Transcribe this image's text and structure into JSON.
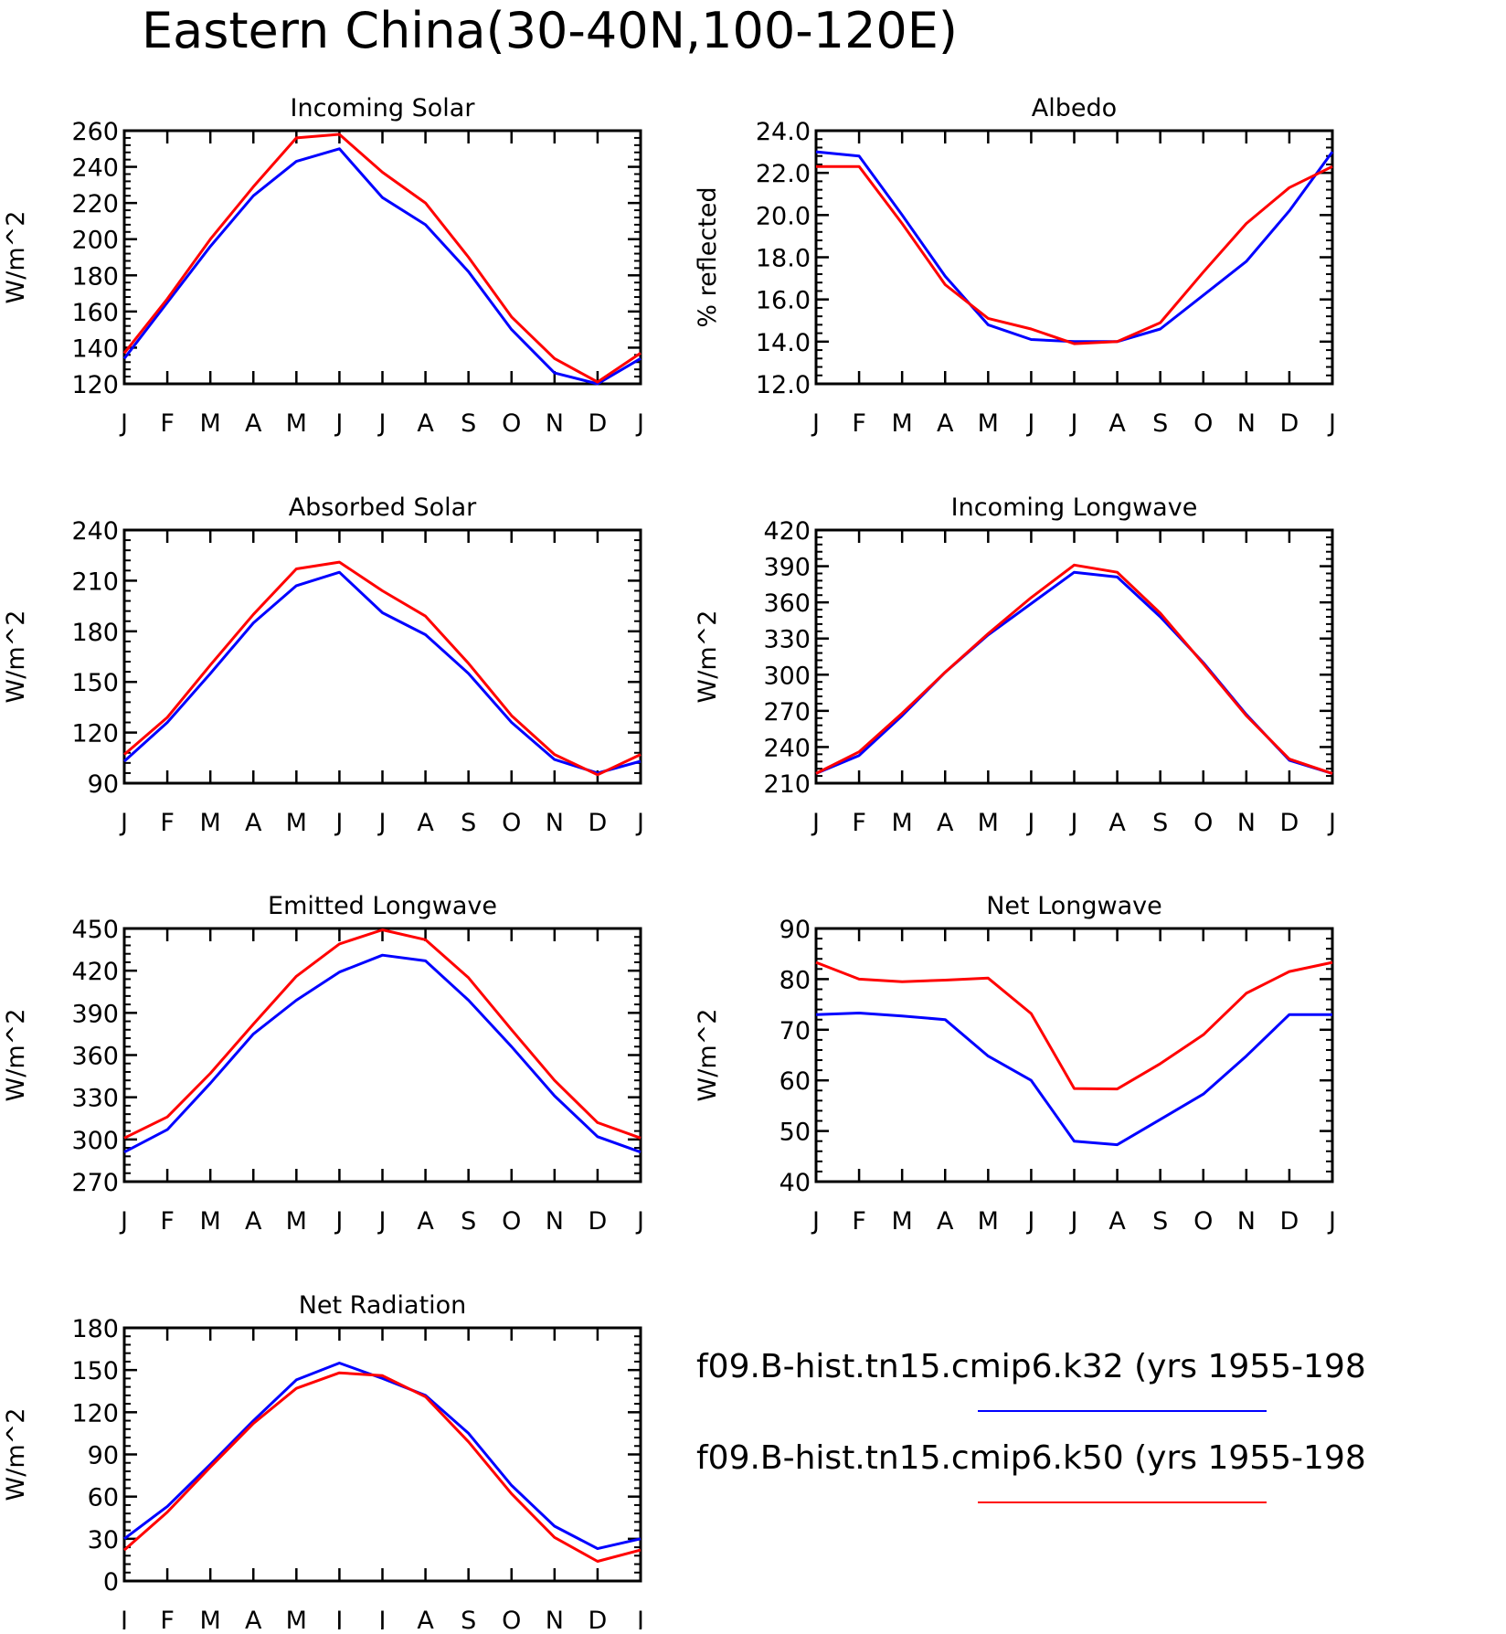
{
  "figure": {
    "title": "Eastern China(30-40N,100-120E)"
  },
  "legend": {
    "placement": "bottom-right",
    "entries": [
      {
        "label": "f09.B-hist.tn15.cmip6.k32 (yrs 1955-198",
        "color": "#0000ff"
      },
      {
        "label": "f09.B-hist.tn15.cmip6.k50 (yrs 1955-198",
        "color": "#ff0000"
      }
    ]
  },
  "chart_data": [
    {
      "type": "line",
      "title": "Incoming Solar",
      "ylabel": "W/m^2",
      "xlabel": "",
      "categories": [
        "J",
        "F",
        "M",
        "A",
        "M",
        "J",
        "J",
        "A",
        "S",
        "O",
        "N",
        "D",
        "J"
      ],
      "ylim": [
        120,
        260
      ],
      "yticks": [
        "120",
        "140",
        "160",
        "180",
        "200",
        "220",
        "240",
        "260"
      ],
      "grid": false,
      "series": [
        {
          "color": "#0000ff",
          "values": [
            134,
            165,
            196,
            224,
            243,
            250,
            223,
            208,
            182,
            150,
            126,
            120,
            134
          ]
        },
        {
          "color": "#ff0000",
          "values": [
            137,
            167,
            200,
            229,
            256,
            258,
            237,
            220,
            190,
            157,
            134,
            121,
            137
          ]
        }
      ]
    },
    {
      "type": "line",
      "title": "Albedo",
      "ylabel": "% reflected",
      "xlabel": "",
      "categories": [
        "J",
        "F",
        "M",
        "A",
        "M",
        "J",
        "J",
        "A",
        "S",
        "O",
        "N",
        "D",
        "J"
      ],
      "ylim": [
        12.0,
        24.0
      ],
      "yticks": [
        "12.0",
        "14.0",
        "16.0",
        "18.0",
        "20.0",
        "22.0",
        "24.0"
      ],
      "grid": false,
      "series": [
        {
          "color": "#0000ff",
          "values": [
            23.0,
            22.8,
            20.0,
            17.1,
            14.8,
            14.1,
            14.0,
            14.0,
            14.6,
            16.2,
            17.8,
            20.2,
            23.0
          ]
        },
        {
          "color": "#ff0000",
          "values": [
            22.3,
            22.3,
            19.6,
            16.7,
            15.1,
            14.6,
            13.9,
            14.0,
            14.9,
            17.3,
            19.6,
            21.3,
            22.3
          ]
        }
      ]
    },
    {
      "type": "line",
      "title": "Absorbed Solar",
      "ylabel": "W/m^2",
      "xlabel": "",
      "categories": [
        "J",
        "F",
        "M",
        "A",
        "M",
        "J",
        "J",
        "A",
        "S",
        "O",
        "N",
        "D",
        "J"
      ],
      "ylim": [
        90,
        240
      ],
      "yticks": [
        "90",
        "120",
        "150",
        "180",
        "210",
        "240"
      ],
      "grid": false,
      "series": [
        {
          "color": "#0000ff",
          "values": [
            103,
            126,
            155,
            185,
            207,
            215,
            191,
            178,
            155,
            126,
            104,
            96,
            103
          ]
        },
        {
          "color": "#ff0000",
          "values": [
            107,
            129,
            160,
            190,
            217,
            221,
            204,
            189,
            161,
            130,
            107,
            95,
            107
          ]
        }
      ]
    },
    {
      "type": "line",
      "title": "Incoming Longwave",
      "ylabel": "W/m^2",
      "xlabel": "",
      "categories": [
        "J",
        "F",
        "M",
        "A",
        "M",
        "J",
        "J",
        "A",
        "S",
        "O",
        "N",
        "D",
        "J"
      ],
      "ylim": [
        210,
        420
      ],
      "yticks": [
        "210",
        "240",
        "270",
        "300",
        "330",
        "360",
        "390",
        "420"
      ],
      "grid": false,
      "series": [
        {
          "color": "#0000ff",
          "values": [
            218,
            233,
            266,
            302,
            333,
            359,
            385,
            381,
            348,
            310,
            267,
            229,
            218
          ]
        },
        {
          "color": "#ff0000",
          "values": [
            218,
            236,
            268,
            302,
            334,
            364,
            391,
            385,
            351,
            309,
            266,
            230,
            218
          ]
        }
      ]
    },
    {
      "type": "line",
      "title": "Emitted Longwave",
      "ylabel": "W/m^2",
      "xlabel": "",
      "categories": [
        "J",
        "F",
        "M",
        "A",
        "M",
        "J",
        "J",
        "A",
        "S",
        "O",
        "N",
        "D",
        "J"
      ],
      "ylim": [
        270,
        450
      ],
      "yticks": [
        "270",
        "300",
        "330",
        "360",
        "390",
        "420",
        "450"
      ],
      "grid": false,
      "series": [
        {
          "color": "#0000ff",
          "values": [
            291,
            307,
            340,
            375,
            399,
            419,
            431,
            427,
            399,
            366,
            331,
            302,
            291
          ]
        },
        {
          "color": "#ff0000",
          "values": [
            301,
            316,
            347,
            382,
            416,
            439,
            449,
            442,
            415,
            378,
            342,
            312,
            301
          ]
        }
      ]
    },
    {
      "type": "line",
      "title": "Net Longwave",
      "ylabel": "W/m^2",
      "xlabel": "",
      "categories": [
        "J",
        "F",
        "M",
        "A",
        "M",
        "J",
        "J",
        "A",
        "S",
        "O",
        "N",
        "D",
        "J"
      ],
      "ylim": [
        40,
        90
      ],
      "yticks": [
        "40",
        "50",
        "60",
        "70",
        "80",
        "90"
      ],
      "grid": false,
      "series": [
        {
          "color": "#0000ff",
          "values": [
            73.0,
            73.3,
            72.7,
            72.0,
            64.8,
            60.0,
            48.0,
            47.3,
            52.3,
            57.3,
            64.8,
            73.0,
            73.0
          ]
        },
        {
          "color": "#ff0000",
          "values": [
            83.3,
            80.0,
            79.5,
            79.8,
            80.2,
            73.2,
            58.4,
            58.3,
            63.3,
            69.0,
            77.2,
            81.5,
            83.3
          ]
        }
      ]
    },
    {
      "type": "line",
      "title": "Net Radiation",
      "ylabel": "W/m^2",
      "xlabel": "",
      "categories": [
        "J",
        "F",
        "M",
        "A",
        "M",
        "J",
        "J",
        "A",
        "S",
        "O",
        "N",
        "D",
        "J"
      ],
      "ylim": [
        0,
        180
      ],
      "yticks": [
        "0",
        "30",
        "60",
        "90",
        "120",
        "150",
        "180"
      ],
      "grid": false,
      "series": [
        {
          "color": "#0000ff",
          "values": [
            30,
            53,
            83,
            114,
            143,
            155,
            144,
            132,
            105,
            68,
            39,
            23,
            30
          ]
        },
        {
          "color": "#ff0000",
          "values": [
            22,
            49,
            81,
            112,
            137,
            148,
            146,
            131,
            99,
            62,
            31,
            14,
            22
          ]
        }
      ]
    }
  ]
}
